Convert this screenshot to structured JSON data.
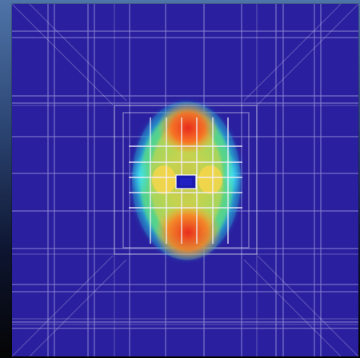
{
  "figure": {
    "description_type": "volumetric-heatmap-visualization",
    "colors": {
      "background": "#2a1f9e",
      "grid": "#ffffff",
      "heat_low": "#1fb8d8",
      "heat_mid": "#66d25b",
      "heat_high": "#ff4a1f",
      "heat_peak": "#d61f1f"
    }
  }
}
